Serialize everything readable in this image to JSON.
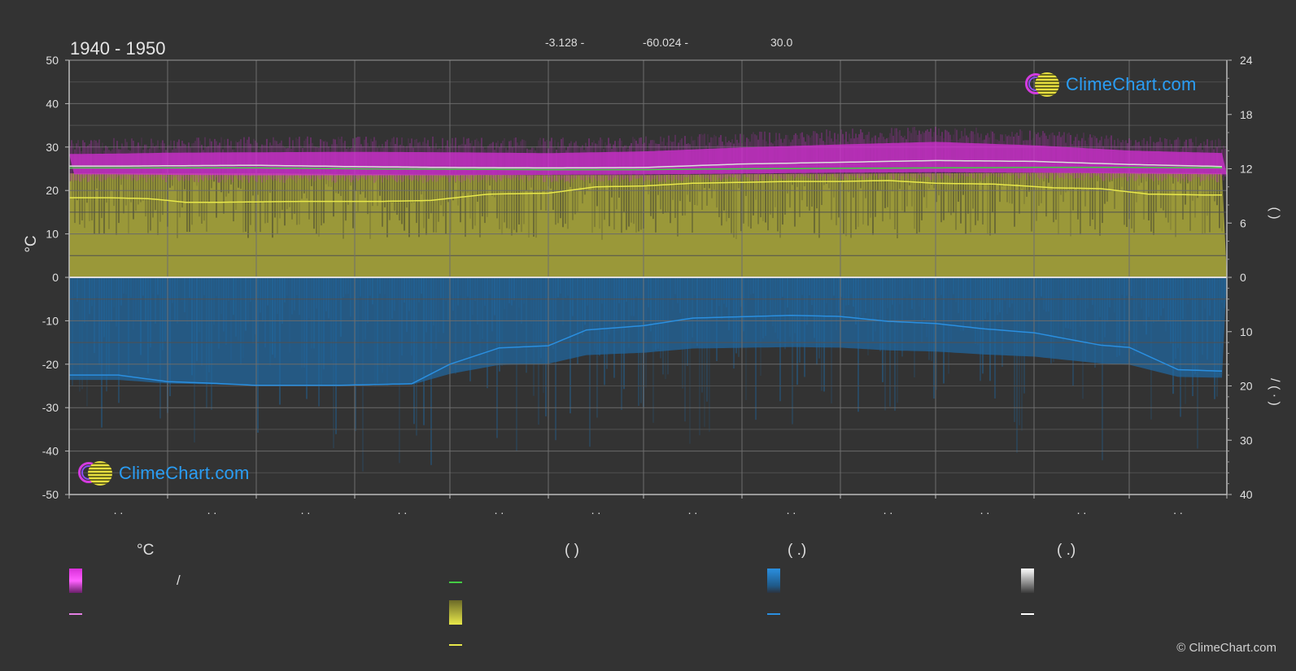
{
  "header": {
    "title": "1940 - 1950",
    "latitude": "-3.128 -",
    "longitude": "-60.024 -",
    "elevation": "30.0"
  },
  "logo": {
    "text": "ClimeChart.com"
  },
  "copyright": "© ClimeChart.com",
  "legend": {
    "temperature_heading": "°C",
    "sunshine_heading": "(          )",
    "rain_heading": "(    .)",
    "snow_heading": "(    .)",
    "temp_range_label": "/"
  },
  "colors": {
    "background": "#333333",
    "temp_range": "#d92fd9",
    "temp_mean_line": "#e47fe4",
    "daylight_line": "#44cc44",
    "sunshine_fill": "#a5a33a",
    "sunshine_line": "#e8e84a",
    "rain_fill": "#1f6aa5",
    "rain_line": "#2a8fe0",
    "snow_line": "#ffffff"
  },
  "chart_data": {
    "type": "area",
    "month_tick_labels": [
      ". .",
      ". .",
      ". .",
      ". .",
      ". .",
      ". .",
      ". .",
      ". .",
      ". .",
      ". .",
      ". .",
      ". ."
    ],
    "left_axis": {
      "label": "°C",
      "ticks": [
        "50",
        "40",
        "30",
        "20",
        "10",
        "0",
        "-10",
        "-20",
        "-30",
        "-40",
        "-50"
      ],
      "range": [
        -50,
        50
      ]
    },
    "right_axis_top": {
      "label": "(   )",
      "ticks": [
        "24",
        "18",
        "12",
        "6",
        "0"
      ],
      "range": [
        0,
        24
      ]
    },
    "right_axis_bottom": {
      "label": "/  (  ·  )",
      "ticks": [
        "0",
        "10",
        "20",
        "30",
        "40"
      ],
      "range": [
        0,
        40
      ]
    },
    "grid": true,
    "series": [
      {
        "key": "temp_max",
        "axis": "left",
        "points": [
          [
            0,
            29
          ],
          [
            0.5,
            29.1
          ],
          [
            1,
            29.3
          ],
          [
            2,
            29.4
          ],
          [
            3,
            29.5
          ],
          [
            4,
            29.4
          ],
          [
            5,
            29.2
          ],
          [
            6,
            29.6
          ],
          [
            7,
            30.5
          ],
          [
            8,
            31.2
          ],
          [
            9,
            31.8
          ],
          [
            10,
            31
          ],
          [
            11,
            29.8
          ],
          [
            12,
            29.2
          ]
        ]
      },
      {
        "key": "temp_min",
        "axis": "left",
        "points": [
          [
            0,
            23.4
          ],
          [
            0.5,
            23.4
          ],
          [
            1,
            23.3
          ],
          [
            2,
            23.2
          ],
          [
            3,
            23.2
          ],
          [
            4,
            23.2
          ],
          [
            5,
            23.3
          ],
          [
            6,
            23.4
          ],
          [
            7,
            23.6
          ],
          [
            8,
            23.8
          ],
          [
            9,
            23.9
          ],
          [
            10,
            23.8
          ],
          [
            11,
            23.6
          ],
          [
            12,
            23.4
          ]
        ]
      },
      {
        "key": "temp_mean",
        "axis": "left",
        "points": [
          [
            0,
            25.6
          ],
          [
            0.5,
            25.6
          ],
          [
            1,
            25.7
          ],
          [
            2,
            25.8
          ],
          [
            3,
            25.5
          ],
          [
            4,
            25.3
          ],
          [
            5,
            25.2
          ],
          [
            6,
            25.3
          ],
          [
            7,
            26.1
          ],
          [
            8,
            26.5
          ],
          [
            9,
            26.9
          ],
          [
            10,
            26.7
          ],
          [
            11,
            26
          ],
          [
            12,
            25.5
          ]
        ]
      },
      {
        "key": "daylight_hours",
        "axis": "right_top",
        "points": [
          [
            0,
            12.1
          ],
          [
            1,
            12.1
          ],
          [
            2,
            12.1
          ],
          [
            3,
            12
          ],
          [
            4,
            11.95
          ],
          [
            5,
            11.9
          ],
          [
            6,
            11.9
          ],
          [
            7,
            12
          ],
          [
            8,
            12.05
          ],
          [
            9,
            12.1
          ],
          [
            10,
            12.15
          ],
          [
            11,
            12.15
          ],
          [
            12,
            12.1
          ]
        ]
      },
      {
        "key": "sunshine_hours",
        "axis": "right_top",
        "points": [
          [
            0,
            8.8
          ],
          [
            0.4,
            8.8
          ],
          [
            0.8,
            8.7
          ],
          [
            1.2,
            8.3
          ],
          [
            1.6,
            8.3
          ],
          [
            2.5,
            8.4
          ],
          [
            3.3,
            8.4
          ],
          [
            3.8,
            8.5
          ],
          [
            4.4,
            9.2
          ],
          [
            5,
            9.3
          ],
          [
            5.5,
            10
          ],
          [
            6,
            10.1
          ],
          [
            6.5,
            10.4
          ],
          [
            7.5,
            10.6
          ],
          [
            8,
            10.6
          ],
          [
            8.5,
            10.7
          ],
          [
            9,
            10.4
          ],
          [
            9.6,
            10.3
          ],
          [
            10.2,
            9.9
          ],
          [
            10.7,
            9.8
          ],
          [
            11.2,
            9.2
          ],
          [
            11.8,
            9.1
          ],
          [
            12,
            9.1
          ]
        ]
      },
      {
        "key": "rain_mm",
        "axis": "right_bottom",
        "points": [
          [
            0,
            18
          ],
          [
            0.5,
            18
          ],
          [
            1,
            19.2
          ],
          [
            1.5,
            19.5
          ],
          [
            2,
            19.9
          ],
          [
            2.8,
            19.9
          ],
          [
            3.6,
            19.6
          ],
          [
            4,
            16
          ],
          [
            4.5,
            13
          ],
          [
            5,
            12.6
          ],
          [
            5.4,
            9.7
          ],
          [
            6,
            8.9
          ],
          [
            6.5,
            7.5
          ],
          [
            7.5,
            7
          ],
          [
            8,
            7.2
          ],
          [
            8.5,
            8.1
          ],
          [
            9,
            8.5
          ],
          [
            9.5,
            9.5
          ],
          [
            10,
            10.2
          ],
          [
            10.7,
            12.5
          ],
          [
            11,
            12.9
          ],
          [
            11.5,
            17
          ],
          [
            12,
            17.3
          ]
        ]
      }
    ]
  }
}
